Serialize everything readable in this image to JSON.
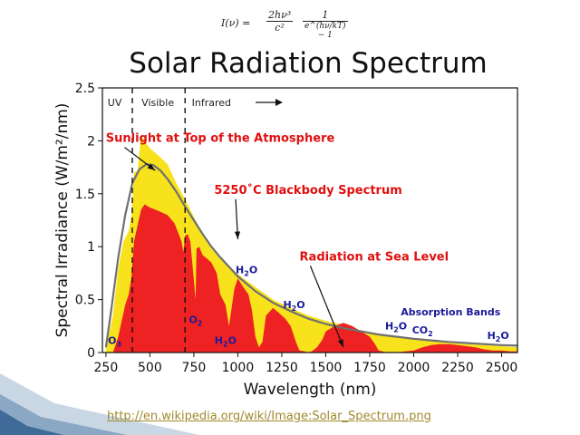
{
  "slide": {
    "title": "Solar Radiation Spectrum",
    "formula": {
      "lhs": "I(ν) =",
      "num1": "2hν³",
      "den1": "c²",
      "num2": "1",
      "den2": "e^(hν/kT) − 1"
    },
    "source_link": "http://en.wikipedia.org/wiki/Image:Solar_Spectrum.png"
  },
  "colors": {
    "top_of_atmosphere": "#f7e21c",
    "sea_level": "#ee2222",
    "blackbody": "#707070",
    "annotation_red": "#e01010",
    "annotation_blue": "#1a1a99",
    "link": "#a08a2c"
  },
  "chart_data": {
    "type": "area",
    "title": "",
    "xlabel": "Wavelength (nm)",
    "ylabel": "Spectral Irradiance (W/m²/nm)",
    "xlim": [
      230,
      2590
    ],
    "ylim": [
      0,
      2.5
    ],
    "xticks": [
      250,
      500,
      750,
      1000,
      1250,
      1500,
      1750,
      2000,
      2250,
      2500
    ],
    "yticks": [
      0,
      0.5,
      1,
      1.5,
      2,
      2.5
    ],
    "ytick_labels": [
      "0",
      "0.5",
      "1",
      "1.5",
      "2",
      "2.5"
    ],
    "grid": false,
    "regions": [
      {
        "label": "UV",
        "x": 300
      },
      {
        "label": "Visible",
        "x": 545
      },
      {
        "label": "Infrared",
        "x": 850
      }
    ],
    "dividers": [
      400,
      700
    ],
    "series": [
      {
        "name": "Sunlight at Top of the Atmosphere",
        "kind": "area",
        "color": "#f7e21c",
        "x": [
          250,
          290,
          320,
          350,
          380,
          395,
          410,
          430,
          450,
          470,
          490,
          520,
          550,
          600,
          650,
          700,
          750,
          800,
          850,
          900,
          1000,
          1100,
          1200,
          1300,
          1400,
          1500,
          1600,
          1700,
          1800,
          1900,
          2000,
          2100,
          2200,
          2300,
          2400,
          2500,
          2590
        ],
        "y": [
          0.04,
          0.35,
          0.8,
          1.05,
          1.15,
          1.3,
          1.7,
          1.72,
          2.05,
          2.0,
          1.95,
          1.9,
          1.86,
          1.78,
          1.6,
          1.45,
          1.28,
          1.12,
          0.98,
          0.9,
          0.74,
          0.62,
          0.5,
          0.42,
          0.35,
          0.3,
          0.26,
          0.21,
          0.18,
          0.15,
          0.13,
          0.11,
          0.09,
          0.08,
          0.07,
          0.06,
          0.05
        ]
      },
      {
        "name": "Radiation at Sea Level",
        "kind": "area",
        "color": "#ee2222",
        "x": [
          290,
          300,
          320,
          340,
          360,
          380,
          395,
          410,
          430,
          450,
          470,
          500,
          530,
          560,
          600,
          640,
          680,
          690,
          700,
          715,
          730,
          760,
          765,
          780,
          800,
          830,
          850,
          880,
          900,
          930,
          950,
          980,
          1000,
          1030,
          1060,
          1080,
          1100,
          1120,
          1140,
          1160,
          1200,
          1230,
          1270,
          1300,
          1330,
          1350,
          1380,
          1400,
          1420,
          1450,
          1480,
          1500,
          1550,
          1600,
          1650,
          1700,
          1750,
          1780,
          1800,
          1850,
          1900,
          1950,
          2000,
          2050,
          2100,
          2150,
          2200,
          2250,
          2300,
          2350,
          2400,
          2450,
          2500,
          2550,
          2590
        ],
        "y": [
          0.0,
          0.05,
          0.15,
          0.3,
          0.45,
          0.55,
          0.7,
          1.05,
          1.2,
          1.35,
          1.4,
          1.37,
          1.35,
          1.33,
          1.3,
          1.22,
          1.05,
          0.95,
          1.1,
          1.12,
          1.05,
          0.5,
          0.98,
          1.0,
          0.92,
          0.88,
          0.85,
          0.75,
          0.55,
          0.45,
          0.25,
          0.6,
          0.7,
          0.62,
          0.55,
          0.4,
          0.15,
          0.05,
          0.1,
          0.35,
          0.42,
          0.38,
          0.32,
          0.25,
          0.1,
          0.02,
          0.01,
          0.0,
          0.01,
          0.05,
          0.12,
          0.2,
          0.25,
          0.28,
          0.25,
          0.2,
          0.15,
          0.08,
          0.02,
          0.0,
          0.0,
          0.01,
          0.02,
          0.05,
          0.07,
          0.08,
          0.08,
          0.07,
          0.06,
          0.05,
          0.03,
          0.02,
          0.02,
          0.01,
          0.01
        ]
      },
      {
        "name": "5250°C Blackbody Spectrum",
        "kind": "line",
        "color": "#707070",
        "x": [
          250,
          280,
          320,
          360,
          400,
          440,
          480,
          520,
          560,
          600,
          650,
          700,
          750,
          800,
          850,
          900,
          1000,
          1100,
          1200,
          1300,
          1400,
          1500,
          1600,
          1700,
          1800,
          1900,
          2000,
          2100,
          2200,
          2300,
          2400,
          2500,
          2590
        ],
        "y": [
          0.05,
          0.4,
          0.9,
          1.3,
          1.6,
          1.73,
          1.78,
          1.77,
          1.72,
          1.64,
          1.52,
          1.38,
          1.25,
          1.12,
          1.0,
          0.9,
          0.72,
          0.58,
          0.47,
          0.39,
          0.32,
          0.27,
          0.23,
          0.2,
          0.17,
          0.15,
          0.13,
          0.115,
          0.1,
          0.09,
          0.08,
          0.07,
          0.065
        ]
      }
    ],
    "annotations": [
      {
        "text": "Sunlight at Top of the Atmosphere",
        "color": "red",
        "x": 900,
        "y": 1.99,
        "arrow_to": [
          530,
          1.72
        ]
      },
      {
        "text": "5250˚C Blackbody Spectrum",
        "color": "red",
        "x": 1400,
        "y": 1.5,
        "arrow_to": [
          1000,
          1.07
        ]
      },
      {
        "text": "Radiation at Sea Level",
        "color": "red",
        "x": 1775,
        "y": 0.87,
        "arrow_to": [
          1600,
          0.05
        ]
      },
      {
        "text": "Absorption Bands",
        "color": "blue",
        "x": 2210,
        "y": 0.35
      }
    ],
    "absorption_labels": [
      {
        "species": "O",
        "sub": "3",
        "x": 300,
        "y": 0.08
      },
      {
        "species": "O",
        "sub": "2",
        "x": 760,
        "y": 0.28
      },
      {
        "species": "H",
        "sub": "2",
        "tail": "O",
        "x": 1050,
        "y": 0.75
      },
      {
        "species": "H",
        "sub": "2",
        "tail": "O",
        "x": 930,
        "y": 0.08
      },
      {
        "species": "H",
        "sub": "2",
        "tail": "O",
        "x": 1320,
        "y": 0.42
      },
      {
        "species": "H",
        "sub": "2",
        "tail": "O",
        "x": 1900,
        "y": 0.22
      },
      {
        "species": "CO",
        "sub": "2",
        "x": 2050,
        "y": 0.18
      },
      {
        "species": "H",
        "sub": "2",
        "tail": "O",
        "x": 2480,
        "y": 0.13
      }
    ]
  }
}
